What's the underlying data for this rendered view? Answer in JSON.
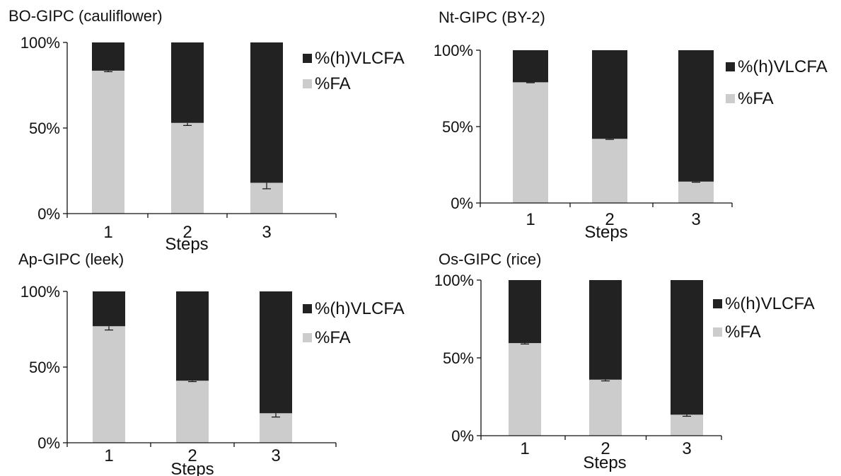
{
  "colors": {
    "vlcfa": "#222222",
    "fa": "#cccccc",
    "axis": "#111111"
  },
  "chart_data": [
    {
      "type": "bar",
      "stacked": true,
      "title": "BO-GIPC (cauliflower)",
      "xlabel": "Steps",
      "ylabel": "",
      "categories": [
        "1",
        "2",
        "3"
      ],
      "ylim": [
        0,
        100
      ],
      "yticks": [
        "0%",
        "50%",
        "100%"
      ],
      "legend_position": "right",
      "series": [
        {
          "name": "%(h)VLCFA",
          "values": [
            16.5,
            47,
            82
          ],
          "color": "#222222"
        },
        {
          "name": "%FA",
          "values": [
            83.5,
            53,
            18
          ],
          "color": "#cccccc",
          "error": [
            0.6,
            1.5,
            3.5
          ]
        }
      ]
    },
    {
      "type": "bar",
      "stacked": true,
      "title": "Nt-GIPC (BY-2)",
      "xlabel": "Steps",
      "ylabel": "",
      "categories": [
        "1",
        "2",
        "3"
      ],
      "ylim": [
        0,
        100
      ],
      "yticks": [
        "0%",
        "50%",
        "100%"
      ],
      "legend_position": "right",
      "series": [
        {
          "name": "%(h)VLCFA",
          "values": [
            21,
            58,
            86
          ],
          "color": "#222222"
        },
        {
          "name": "%FA",
          "values": [
            79,
            42,
            14
          ],
          "color": "#cccccc",
          "error": [
            0.3,
            0.4,
            0.4
          ]
        }
      ]
    },
    {
      "type": "bar",
      "stacked": true,
      "title": "Ap-GIPC (leek)",
      "xlabel": "Steps",
      "ylabel": "",
      "categories": [
        "1",
        "2",
        "3"
      ],
      "ylim": [
        0,
        100
      ],
      "yticks": [
        "0%",
        "50%",
        "100%"
      ],
      "legend_position": "right",
      "series": [
        {
          "name": "%(h)VLCFA",
          "values": [
            23,
            59,
            80.5
          ],
          "color": "#222222"
        },
        {
          "name": "%FA",
          "values": [
            77,
            41,
            19.5
          ],
          "color": "#cccccc",
          "error": [
            2.5,
            0.6,
            2.5
          ]
        }
      ]
    },
    {
      "type": "bar",
      "stacked": true,
      "title": "Os-GIPC (rice)",
      "xlabel": "Steps",
      "ylabel": "",
      "categories": [
        "1",
        "2",
        "3"
      ],
      "ylim": [
        0,
        100
      ],
      "yticks": [
        "0%",
        "50%",
        "100%"
      ],
      "legend_position": "right",
      "series": [
        {
          "name": "%(h)VLCFA",
          "values": [
            40.5,
            64,
            86.5
          ],
          "color": "#222222"
        },
        {
          "name": "%FA",
          "values": [
            59.5,
            36,
            13.5
          ],
          "color": "#cccccc",
          "error": [
            0.6,
            0.8,
            1.0
          ]
        }
      ]
    }
  ]
}
